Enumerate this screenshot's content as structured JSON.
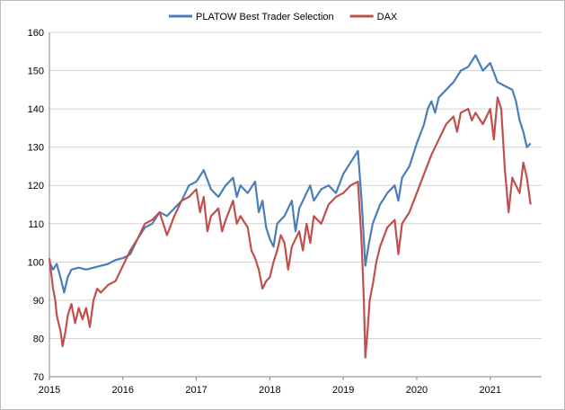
{
  "chart_data": {
    "type": "line",
    "title": "",
    "xlabel": "",
    "ylabel": "",
    "xlim": [
      2015,
      2021.7
    ],
    "ylim": [
      70,
      160
    ],
    "x_ticks": [
      "2015",
      "2016",
      "2017",
      "2018",
      "2019",
      "2020",
      "2021"
    ],
    "y_ticks": [
      "70",
      "80",
      "90",
      "100",
      "110",
      "120",
      "130",
      "140",
      "150",
      "160"
    ],
    "grid": "horizontal",
    "legend_position": "top",
    "series": [
      {
        "name": "PLATOW Best Trader Selection",
        "color": "#4a7ebb",
        "points": [
          [
            2015.0,
            100
          ],
          [
            2015.05,
            98
          ],
          [
            2015.1,
            99.5
          ],
          [
            2015.15,
            96
          ],
          [
            2015.2,
            92
          ],
          [
            2015.25,
            96
          ],
          [
            2015.3,
            98
          ],
          [
            2015.4,
            98.5
          ],
          [
            2015.5,
            98
          ],
          [
            2015.6,
            98.5
          ],
          [
            2015.7,
            99
          ],
          [
            2015.8,
            99.5
          ],
          [
            2015.9,
            100.5
          ],
          [
            2016.0,
            101
          ],
          [
            2016.1,
            102
          ],
          [
            2016.2,
            106
          ],
          [
            2016.3,
            109
          ],
          [
            2016.4,
            110
          ],
          [
            2016.5,
            113
          ],
          [
            2016.6,
            112
          ],
          [
            2016.7,
            114
          ],
          [
            2016.8,
            116
          ],
          [
            2016.9,
            120
          ],
          [
            2017.0,
            121
          ],
          [
            2017.1,
            124
          ],
          [
            2017.2,
            119
          ],
          [
            2017.3,
            117
          ],
          [
            2017.4,
            120
          ],
          [
            2017.5,
            122
          ],
          [
            2017.55,
            117
          ],
          [
            2017.6,
            120
          ],
          [
            2017.7,
            118
          ],
          [
            2017.8,
            121
          ],
          [
            2017.85,
            113
          ],
          [
            2017.9,
            116
          ],
          [
            2017.95,
            109
          ],
          [
            2018.0,
            106
          ],
          [
            2018.05,
            104
          ],
          [
            2018.1,
            110
          ],
          [
            2018.2,
            112
          ],
          [
            2018.3,
            116
          ],
          [
            2018.35,
            108
          ],
          [
            2018.4,
            114
          ],
          [
            2018.5,
            118
          ],
          [
            2018.55,
            120
          ],
          [
            2018.6,
            116
          ],
          [
            2018.7,
            119
          ],
          [
            2018.8,
            120
          ],
          [
            2018.9,
            118
          ],
          [
            2019.0,
            123
          ],
          [
            2019.1,
            126
          ],
          [
            2019.2,
            129
          ],
          [
            2019.25,
            116
          ],
          [
            2019.3,
            99
          ],
          [
            2019.35,
            105
          ],
          [
            2019.4,
            110
          ],
          [
            2019.5,
            115
          ],
          [
            2019.6,
            118
          ],
          [
            2019.7,
            120
          ],
          [
            2019.75,
            116
          ],
          [
            2019.8,
            122
          ],
          [
            2019.9,
            125
          ],
          [
            2020.0,
            131
          ],
          [
            2020.1,
            136
          ],
          [
            2020.15,
            140
          ],
          [
            2020.2,
            142
          ],
          [
            2020.25,
            139
          ],
          [
            2020.3,
            143
          ],
          [
            2020.4,
            145
          ],
          [
            2020.5,
            147
          ],
          [
            2020.6,
            150
          ],
          [
            2020.7,
            151
          ],
          [
            2020.8,
            154
          ],
          [
            2020.85,
            152
          ],
          [
            2020.9,
            150
          ],
          [
            2021.0,
            152
          ],
          [
            2021.1,
            147
          ],
          [
            2021.2,
            146
          ],
          [
            2021.3,
            145
          ],
          [
            2021.35,
            142
          ],
          [
            2021.4,
            137
          ],
          [
            2021.45,
            134
          ],
          [
            2021.5,
            130
          ],
          [
            2021.55,
            131
          ]
        ]
      },
      {
        "name": "DAX",
        "color": "#c0504d",
        "points": [
          [
            2015.0,
            101
          ],
          [
            2015.05,
            93
          ],
          [
            2015.08,
            90
          ],
          [
            2015.1,
            86
          ],
          [
            2015.15,
            82
          ],
          [
            2015.18,
            78
          ],
          [
            2015.22,
            82
          ],
          [
            2015.25,
            86
          ],
          [
            2015.3,
            89
          ],
          [
            2015.35,
            84
          ],
          [
            2015.4,
            88
          ],
          [
            2015.45,
            85
          ],
          [
            2015.5,
            88
          ],
          [
            2015.55,
            83
          ],
          [
            2015.6,
            90
          ],
          [
            2015.65,
            93
          ],
          [
            2015.7,
            92
          ],
          [
            2015.8,
            94
          ],
          [
            2015.9,
            95
          ],
          [
            2016.0,
            99
          ],
          [
            2016.1,
            103
          ],
          [
            2016.2,
            106
          ],
          [
            2016.3,
            110
          ],
          [
            2016.4,
            111
          ],
          [
            2016.5,
            113
          ],
          [
            2016.55,
            110
          ],
          [
            2016.6,
            107
          ],
          [
            2016.7,
            112
          ],
          [
            2016.8,
            116
          ],
          [
            2016.9,
            117
          ],
          [
            2017.0,
            119
          ],
          [
            2017.05,
            113
          ],
          [
            2017.1,
            117
          ],
          [
            2017.15,
            108
          ],
          [
            2017.2,
            112
          ],
          [
            2017.3,
            114
          ],
          [
            2017.35,
            108
          ],
          [
            2017.4,
            111
          ],
          [
            2017.5,
            116
          ],
          [
            2017.55,
            110
          ],
          [
            2017.6,
            112
          ],
          [
            2017.7,
            109
          ],
          [
            2017.75,
            103
          ],
          [
            2017.8,
            101
          ],
          [
            2017.85,
            98
          ],
          [
            2017.9,
            93
          ],
          [
            2017.95,
            95
          ],
          [
            2018.0,
            96
          ],
          [
            2018.05,
            100
          ],
          [
            2018.1,
            103
          ],
          [
            2018.15,
            107
          ],
          [
            2018.2,
            105
          ],
          [
            2018.25,
            98
          ],
          [
            2018.3,
            104
          ],
          [
            2018.4,
            108
          ],
          [
            2018.45,
            103
          ],
          [
            2018.5,
            110
          ],
          [
            2018.55,
            105
          ],
          [
            2018.6,
            112
          ],
          [
            2018.7,
            110
          ],
          [
            2018.8,
            115
          ],
          [
            2018.9,
            117
          ],
          [
            2019.0,
            118
          ],
          [
            2019.1,
            120
          ],
          [
            2019.2,
            121
          ],
          [
            2019.25,
            105
          ],
          [
            2019.28,
            90
          ],
          [
            2019.3,
            75
          ],
          [
            2019.33,
            82
          ],
          [
            2019.36,
            90
          ],
          [
            2019.4,
            94
          ],
          [
            2019.45,
            100
          ],
          [
            2019.5,
            104
          ],
          [
            2019.6,
            109
          ],
          [
            2019.7,
            111
          ],
          [
            2019.75,
            102
          ],
          [
            2019.8,
            110
          ],
          [
            2019.9,
            113
          ],
          [
            2020.0,
            118
          ],
          [
            2020.1,
            123
          ],
          [
            2020.2,
            128
          ],
          [
            2020.3,
            132
          ],
          [
            2020.4,
            136
          ],
          [
            2020.5,
            138
          ],
          [
            2020.55,
            134
          ],
          [
            2020.6,
            139
          ],
          [
            2020.7,
            140
          ],
          [
            2020.75,
            137
          ],
          [
            2020.8,
            139
          ],
          [
            2020.9,
            136
          ],
          [
            2021.0,
            140
          ],
          [
            2021.05,
            132
          ],
          [
            2021.1,
            143
          ],
          [
            2021.15,
            140
          ],
          [
            2021.2,
            124
          ],
          [
            2021.25,
            113
          ],
          [
            2021.3,
            122
          ],
          [
            2021.35,
            120
          ],
          [
            2021.4,
            118
          ],
          [
            2021.45,
            126
          ],
          [
            2021.5,
            122
          ],
          [
            2021.55,
            115
          ]
        ]
      }
    ]
  }
}
